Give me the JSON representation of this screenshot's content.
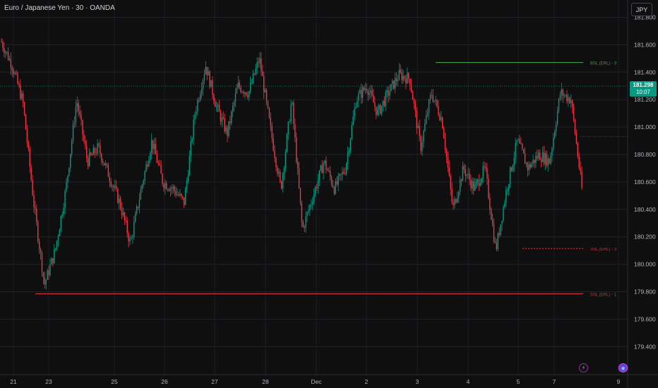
{
  "header": {
    "title": "Euro / Japanese Yen · 30 · OANDA",
    "currency_button": "JPY"
  },
  "price_badge": {
    "price": "181.298",
    "countdown": "10:07"
  },
  "colors": {
    "up": "#089981",
    "down": "#f23645",
    "bsl": "#4caf50",
    "ssl": "#f23645",
    "background": "#0f0f0f"
  },
  "icons": [
    "lightning-icon",
    "globe-icon"
  ],
  "chart_data": {
    "type": "candlestick",
    "title": "Euro / Japanese Yen · 30 · OANDA",
    "ylim": [
      179.3,
      181.9
    ],
    "y_ticks": [
      "181.800",
      "181.600",
      "181.400",
      "181.200",
      "181.000",
      "180.800",
      "180.600",
      "180.400",
      "180.200",
      "180.000",
      "179.800",
      "179.600",
      "179.400"
    ],
    "x_ticks": [
      "21",
      "23",
      "25",
      "26",
      "27",
      "28",
      "Dec",
      "2",
      "3",
      "4",
      "5",
      "7",
      "9"
    ],
    "last_price": 181.298,
    "series": [
      {
        "name": "close_path",
        "values": [
          181.62,
          181.45,
          181.18,
          180.45,
          179.85,
          180.1,
          180.55,
          181.2,
          180.75,
          180.85,
          180.65,
          180.45,
          180.15,
          180.55,
          180.9,
          180.6,
          180.55,
          180.45,
          181.1,
          181.45,
          181.15,
          180.95,
          181.3,
          181.25,
          181.5,
          181.0,
          180.55,
          181.2,
          180.25,
          180.5,
          180.75,
          180.55,
          180.7,
          181.2,
          181.3,
          181.1,
          181.25,
          181.38,
          181.35,
          180.85,
          181.25,
          181.05,
          180.4,
          180.7,
          180.55,
          180.7,
          180.1,
          180.55,
          180.9,
          180.7,
          180.8,
          180.75,
          181.25,
          181.2,
          180.55
        ]
      }
    ],
    "levels": [
      {
        "label": "BSL (ERL) - 3",
        "value": 181.47
      },
      {
        "label": "SSL (ERL) - 3",
        "value": 180.115
      },
      {
        "label": "SSL (ERL) - 1",
        "value": 179.785
      }
    ]
  }
}
